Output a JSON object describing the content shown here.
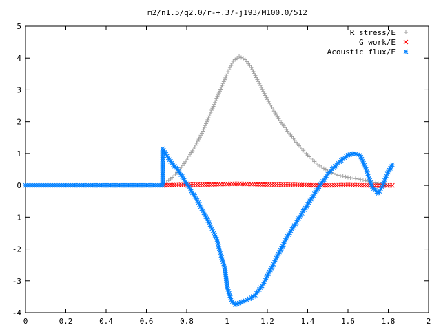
{
  "chart_data": {
    "type": "scatter",
    "title": "m2/n1.5/q2.0/r-+.37-j193/M100.0/512",
    "xlabel": "",
    "ylabel": "",
    "xlim": [
      0,
      2
    ],
    "ylim": [
      -4,
      5
    ],
    "xticks": [
      "0",
      "0.2",
      "0.4",
      "0.6",
      "0.8",
      "1",
      "1.2",
      "1.4",
      "1.6",
      "1.8",
      "2"
    ],
    "yticks": [
      "-4",
      "-3",
      "-2",
      "-1",
      "0",
      "1",
      "2",
      "3",
      "4",
      "5"
    ],
    "grid": false,
    "legend_position": "top-right",
    "series": [
      {
        "name": "R stress/E",
        "marker": "+",
        "color": "#a0a0a0",
        "points": [
          [
            0.68,
            0.0
          ],
          [
            0.72,
            0.2
          ],
          [
            0.76,
            0.45
          ],
          [
            0.8,
            0.8
          ],
          [
            0.84,
            1.2
          ],
          [
            0.88,
            1.7
          ],
          [
            0.92,
            2.3
          ],
          [
            0.96,
            2.9
          ],
          [
            1.0,
            3.5
          ],
          [
            1.03,
            3.9
          ],
          [
            1.06,
            4.05
          ],
          [
            1.09,
            3.95
          ],
          [
            1.12,
            3.7
          ],
          [
            1.16,
            3.2
          ],
          [
            1.2,
            2.7
          ],
          [
            1.25,
            2.15
          ],
          [
            1.3,
            1.7
          ],
          [
            1.35,
            1.3
          ],
          [
            1.4,
            0.95
          ],
          [
            1.45,
            0.65
          ],
          [
            1.5,
            0.45
          ],
          [
            1.55,
            0.32
          ],
          [
            1.6,
            0.25
          ],
          [
            1.65,
            0.2
          ],
          [
            1.7,
            0.13
          ],
          [
            1.75,
            0.06
          ],
          [
            1.8,
            0.0
          ]
        ]
      },
      {
        "name": "G work/E",
        "marker": "x",
        "color": "#ff0000",
        "points": [
          [
            0.68,
            0.0
          ],
          [
            0.75,
            0.01
          ],
          [
            0.82,
            0.02
          ],
          [
            0.9,
            0.03
          ],
          [
            0.98,
            0.04
          ],
          [
            1.05,
            0.05
          ],
          [
            1.12,
            0.04
          ],
          [
            1.2,
            0.03
          ],
          [
            1.28,
            0.02
          ],
          [
            1.36,
            0.01
          ],
          [
            1.44,
            0.0
          ],
          [
            1.52,
            0.0
          ],
          [
            1.6,
            0.01
          ],
          [
            1.68,
            0.0
          ],
          [
            1.76,
            -0.01
          ],
          [
            1.82,
            0.0
          ]
        ]
      },
      {
        "name": "Acoustic flux/E",
        "marker": "*",
        "color": "#0080ff",
        "points": [
          [
            0.0,
            0.0
          ],
          [
            0.1,
            0.0
          ],
          [
            0.2,
            0.0
          ],
          [
            0.3,
            0.0
          ],
          [
            0.4,
            0.0
          ],
          [
            0.5,
            0.0
          ],
          [
            0.6,
            0.0
          ],
          [
            0.68,
            0.0
          ],
          [
            0.68,
            1.15
          ],
          [
            0.72,
            0.75
          ],
          [
            0.76,
            0.45
          ],
          [
            0.8,
            0.05
          ],
          [
            0.84,
            -0.35
          ],
          [
            0.88,
            -0.8
          ],
          [
            0.92,
            -1.3
          ],
          [
            0.95,
            -1.7
          ],
          [
            0.97,
            -2.2
          ],
          [
            0.99,
            -2.6
          ],
          [
            1.0,
            -3.2
          ],
          [
            1.02,
            -3.6
          ],
          [
            1.04,
            -3.75
          ],
          [
            1.06,
            -3.7
          ],
          [
            1.1,
            -3.6
          ],
          [
            1.14,
            -3.45
          ],
          [
            1.18,
            -3.1
          ],
          [
            1.22,
            -2.6
          ],
          [
            1.26,
            -2.1
          ],
          [
            1.3,
            -1.6
          ],
          [
            1.35,
            -1.1
          ],
          [
            1.4,
            -0.6
          ],
          [
            1.45,
            -0.1
          ],
          [
            1.5,
            0.35
          ],
          [
            1.55,
            0.7
          ],
          [
            1.6,
            0.95
          ],
          [
            1.63,
            1.0
          ],
          [
            1.66,
            0.95
          ],
          [
            1.69,
            0.5
          ],
          [
            1.72,
            -0.05
          ],
          [
            1.75,
            -0.25
          ],
          [
            1.77,
            -0.05
          ],
          [
            1.79,
            0.3
          ],
          [
            1.82,
            0.65
          ]
        ]
      }
    ]
  }
}
